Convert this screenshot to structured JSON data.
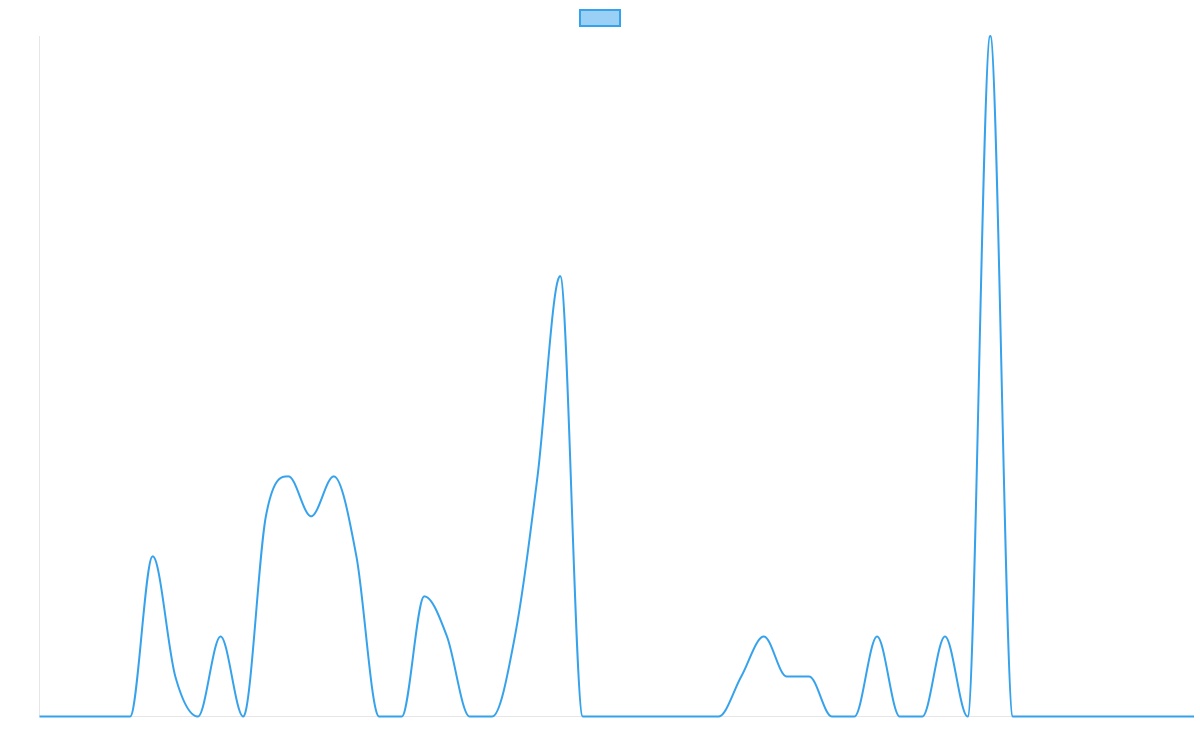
{
  "chart_data": {
    "type": "line",
    "title": "",
    "xlabel": "",
    "ylabel": "",
    "legend": {
      "placement": "top-center",
      "entries": [
        {
          "name": "",
          "color": "#36a2eb",
          "fill": "#9ad0f5"
        }
      ]
    },
    "grid": false,
    "smooth": true,
    "x": [
      0,
      1,
      2,
      3,
      4,
      5,
      6,
      7,
      8,
      9,
      10,
      11,
      12,
      13,
      14,
      15,
      16,
      17,
      18,
      19,
      20,
      21,
      22,
      23,
      24,
      25,
      26,
      27,
      28,
      29,
      30,
      31,
      32,
      33,
      34,
      35,
      36,
      37,
      38,
      39,
      40,
      41,
      42,
      43,
      44,
      45,
      46,
      47,
      48,
      49,
      50,
      51
    ],
    "xlim": [
      0,
      51
    ],
    "ylim": [
      0,
      17
    ],
    "series": [
      {
        "name": "",
        "color": "#36a2eb",
        "values": [
          0,
          0,
          0,
          0,
          0,
          4,
          1,
          0,
          2,
          0,
          5,
          6,
          5,
          6,
          4,
          0,
          0,
          3,
          2,
          0,
          0,
          2,
          6,
          11,
          0,
          0,
          0,
          0,
          0,
          0,
          0,
          1,
          2,
          1,
          1,
          0,
          0,
          2,
          0,
          0,
          2,
          0,
          17,
          0,
          0,
          0,
          0,
          0,
          0,
          0,
          0,
          0
        ]
      }
    ]
  }
}
